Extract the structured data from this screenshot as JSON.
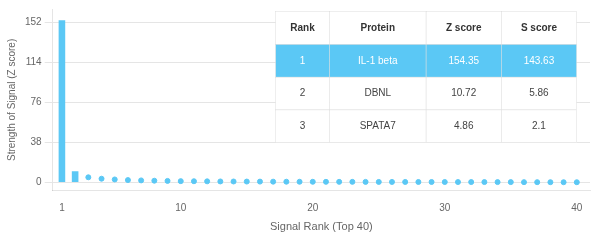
{
  "chart_data": {
    "type": "bar",
    "xlabel": "Signal Rank (Top 40)",
    "ylabel": "Strength of Signal (Z score)",
    "x": [
      1,
      2,
      3,
      4,
      5,
      6,
      7,
      8,
      9,
      10,
      11,
      12,
      13,
      14,
      15,
      16,
      17,
      18,
      19,
      20,
      21,
      22,
      23,
      24,
      25,
      26,
      27,
      28,
      29,
      30,
      31,
      32,
      33,
      34,
      35,
      36,
      37,
      38,
      39,
      40
    ],
    "xlim": [
      0.3,
      41
    ],
    "xticks": [
      1,
      10,
      20,
      30,
      40
    ],
    "ylim": [
      -8,
      165
    ],
    "yticks": [
      0,
      38,
      76,
      114,
      152
    ],
    "grid": true,
    "series": [
      {
        "type": "bar",
        "color": "#5bc8f5",
        "values": [
          154.35,
          10.72,
          null,
          null,
          null,
          null,
          null,
          null,
          null,
          null,
          null,
          null,
          null,
          null,
          null,
          null,
          null,
          null,
          null,
          null,
          null,
          null,
          null,
          null,
          null,
          null,
          null,
          null,
          null,
          null,
          null,
          null,
          null,
          null,
          null,
          null,
          null,
          null,
          null,
          null
        ]
      },
      {
        "type": "scatter",
        "marker": "circle",
        "color": "#5bc8f5",
        "values": [
          null,
          null,
          4.86,
          3.5,
          2.8,
          2.2,
          1.9,
          1.6,
          1.4,
          1.2,
          1.1,
          1.0,
          0.9,
          0.85,
          0.8,
          0.75,
          0.7,
          0.65,
          0.6,
          0.58,
          0.55,
          0.52,
          0.5,
          0.48,
          0.46,
          0.44,
          0.42,
          0.4,
          0.38,
          0.36,
          0.34,
          0.32,
          0.3,
          0.28,
          0.26,
          0.24,
          0.22,
          0.2,
          0.18,
          0.16
        ]
      }
    ],
    "table": {
      "headers": [
        "Rank",
        "Protein",
        "Z score",
        "S score"
      ],
      "rows": [
        [
          "1",
          "IL-1 beta",
          "154.35",
          "143.63"
        ],
        [
          "2",
          "DBNL",
          "10.72",
          "5.86"
        ],
        [
          "3",
          "SPATA7",
          "4.86",
          "2.1"
        ]
      ]
    }
  }
}
